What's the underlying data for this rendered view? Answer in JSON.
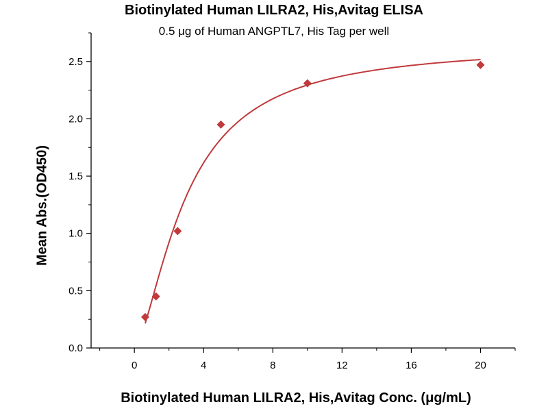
{
  "chart_data": {
    "type": "scatter",
    "title": "Biotinylated Human LILRA2, His,Avitag ELISA",
    "subtitle": "0.5 μg of Human ANGPTL7, His Tag per well",
    "xlabel": "Biotinylated Human LILRA2, His,Avitag Conc. (μg/mL)",
    "ylabel": "Mean Abs.(OD450)",
    "xlim": [
      -2.5,
      22
    ],
    "ylim": [
      0,
      2.75
    ],
    "x_ticks": [
      0,
      4,
      8,
      12,
      16,
      20
    ],
    "y_ticks": [
      0.0,
      0.5,
      1.0,
      1.5,
      2.0,
      2.5
    ],
    "x_tick_labels": [
      "0",
      "4",
      "8",
      "12",
      "16",
      "20"
    ],
    "y_tick_labels": [
      "0.0",
      "0.5",
      "1.0",
      "1.5",
      "2.0",
      "2.5"
    ],
    "series": [
      {
        "marker": "diamond",
        "color": "#C0393B",
        "x": [
          0.625,
          1.25,
          2.5,
          5,
          10,
          20
        ],
        "y": [
          0.27,
          0.45,
          1.02,
          1.95,
          2.31,
          2.47
        ]
      }
    ],
    "fit_curve": {
      "type": "4PL",
      "color": "#C0393B",
      "bottom": 0.0,
      "top": 2.65,
      "ec50": 3.0,
      "hill": 1.55
    },
    "grid": false,
    "legend": "none"
  }
}
